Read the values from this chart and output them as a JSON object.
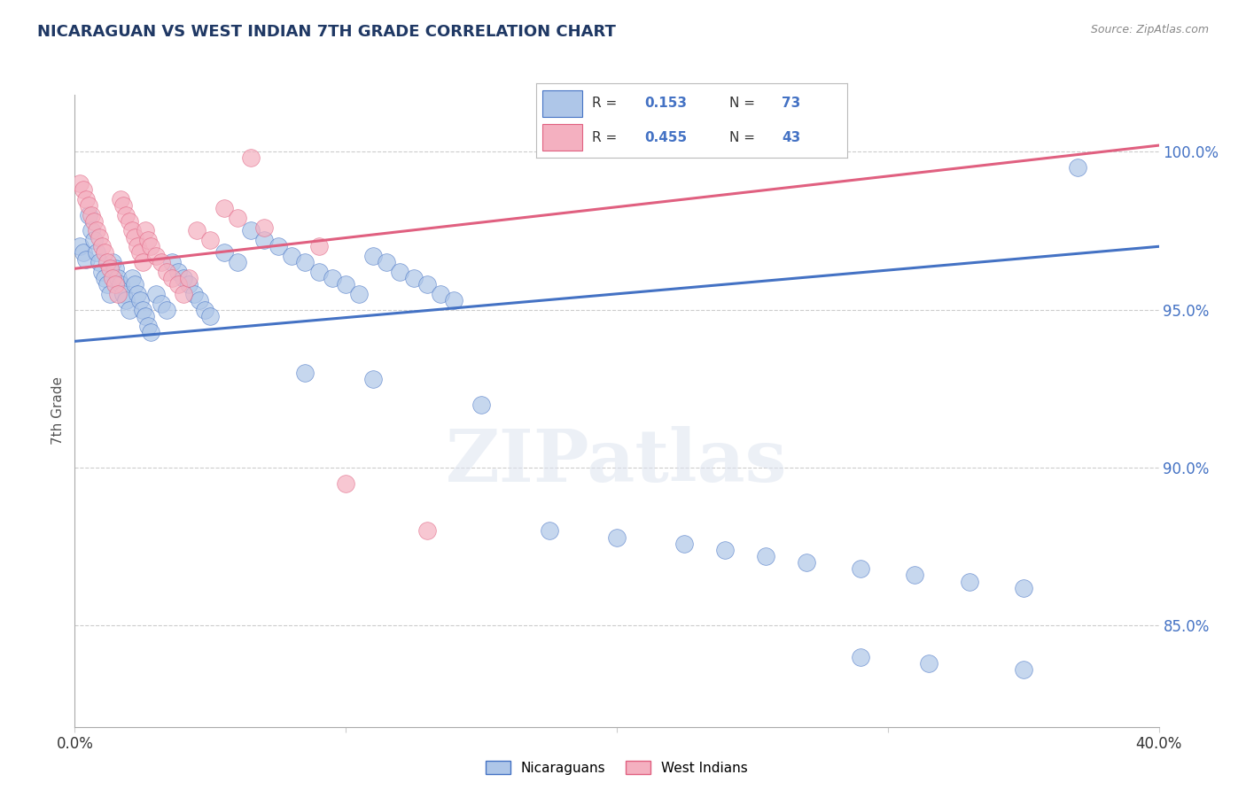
{
  "title": "NICARAGUAN VS WEST INDIAN 7TH GRADE CORRELATION CHART",
  "source": "Source: ZipAtlas.com",
  "ylabel": "7th Grade",
  "yticks_labels": [
    "85.0%",
    "90.0%",
    "95.0%",
    "100.0%"
  ],
  "ytick_vals": [
    0.85,
    0.9,
    0.95,
    1.0
  ],
  "xlim": [
    0.0,
    0.4
  ],
  "ylim": [
    0.818,
    1.018
  ],
  "blue_R": "0.153",
  "blue_N": "73",
  "pink_R": "0.455",
  "pink_N": "43",
  "blue_color": "#aec6e8",
  "pink_color": "#f4b0c0",
  "blue_line_color": "#4472c4",
  "pink_line_color": "#e06080",
  "title_color": "#1f3864",
  "source_color": "#888888",
  "legend_text_color": "#333333",
  "legend_val_color": "#4472c4",
  "blue_scatter": [
    [
      0.002,
      0.97
    ],
    [
      0.003,
      0.968
    ],
    [
      0.004,
      0.966
    ],
    [
      0.005,
      0.98
    ],
    [
      0.006,
      0.975
    ],
    [
      0.007,
      0.972
    ],
    [
      0.008,
      0.968
    ],
    [
      0.009,
      0.965
    ],
    [
      0.01,
      0.962
    ],
    [
      0.011,
      0.96
    ],
    [
      0.012,
      0.958
    ],
    [
      0.013,
      0.955
    ],
    [
      0.014,
      0.965
    ],
    [
      0.015,
      0.963
    ],
    [
      0.016,
      0.96
    ],
    [
      0.017,
      0.958
    ],
    [
      0.018,
      0.955
    ],
    [
      0.019,
      0.953
    ],
    [
      0.02,
      0.95
    ],
    [
      0.021,
      0.96
    ],
    [
      0.022,
      0.958
    ],
    [
      0.023,
      0.955
    ],
    [
      0.024,
      0.953
    ],
    [
      0.025,
      0.95
    ],
    [
      0.026,
      0.948
    ],
    [
      0.027,
      0.945
    ],
    [
      0.028,
      0.943
    ],
    [
      0.03,
      0.955
    ],
    [
      0.032,
      0.952
    ],
    [
      0.034,
      0.95
    ],
    [
      0.036,
      0.965
    ],
    [
      0.038,
      0.962
    ],
    [
      0.04,
      0.96
    ],
    [
      0.042,
      0.958
    ],
    [
      0.044,
      0.955
    ],
    [
      0.046,
      0.953
    ],
    [
      0.048,
      0.95
    ],
    [
      0.05,
      0.948
    ],
    [
      0.055,
      0.968
    ],
    [
      0.06,
      0.965
    ],
    [
      0.065,
      0.975
    ],
    [
      0.07,
      0.972
    ],
    [
      0.075,
      0.97
    ],
    [
      0.08,
      0.967
    ],
    [
      0.085,
      0.965
    ],
    [
      0.09,
      0.962
    ],
    [
      0.095,
      0.96
    ],
    [
      0.1,
      0.958
    ],
    [
      0.105,
      0.955
    ],
    [
      0.11,
      0.967
    ],
    [
      0.115,
      0.965
    ],
    [
      0.12,
      0.962
    ],
    [
      0.125,
      0.96
    ],
    [
      0.13,
      0.958
    ],
    [
      0.135,
      0.955
    ],
    [
      0.14,
      0.953
    ],
    [
      0.085,
      0.93
    ],
    [
      0.11,
      0.928
    ],
    [
      0.15,
      0.92
    ],
    [
      0.175,
      0.88
    ],
    [
      0.2,
      0.878
    ],
    [
      0.225,
      0.876
    ],
    [
      0.24,
      0.874
    ],
    [
      0.255,
      0.872
    ],
    [
      0.27,
      0.87
    ],
    [
      0.29,
      0.868
    ],
    [
      0.31,
      0.866
    ],
    [
      0.33,
      0.864
    ],
    [
      0.35,
      0.862
    ],
    [
      0.29,
      0.84
    ],
    [
      0.315,
      0.838
    ],
    [
      0.35,
      0.836
    ],
    [
      0.37,
      0.995
    ]
  ],
  "pink_scatter": [
    [
      0.002,
      0.99
    ],
    [
      0.003,
      0.988
    ],
    [
      0.004,
      0.985
    ],
    [
      0.005,
      0.983
    ],
    [
      0.006,
      0.98
    ],
    [
      0.007,
      0.978
    ],
    [
      0.008,
      0.975
    ],
    [
      0.009,
      0.973
    ],
    [
      0.01,
      0.97
    ],
    [
      0.011,
      0.968
    ],
    [
      0.012,
      0.965
    ],
    [
      0.013,
      0.963
    ],
    [
      0.014,
      0.96
    ],
    [
      0.015,
      0.958
    ],
    [
      0.016,
      0.955
    ],
    [
      0.017,
      0.985
    ],
    [
      0.018,
      0.983
    ],
    [
      0.019,
      0.98
    ],
    [
      0.02,
      0.978
    ],
    [
      0.021,
      0.975
    ],
    [
      0.022,
      0.973
    ],
    [
      0.023,
      0.97
    ],
    [
      0.024,
      0.968
    ],
    [
      0.025,
      0.965
    ],
    [
      0.026,
      0.975
    ],
    [
      0.027,
      0.972
    ],
    [
      0.028,
      0.97
    ],
    [
      0.03,
      0.967
    ],
    [
      0.032,
      0.965
    ],
    [
      0.034,
      0.962
    ],
    [
      0.036,
      0.96
    ],
    [
      0.038,
      0.958
    ],
    [
      0.04,
      0.955
    ],
    [
      0.042,
      0.96
    ],
    [
      0.045,
      0.975
    ],
    [
      0.05,
      0.972
    ],
    [
      0.055,
      0.982
    ],
    [
      0.06,
      0.979
    ],
    [
      0.065,
      0.998
    ],
    [
      0.07,
      0.976
    ],
    [
      0.09,
      0.97
    ],
    [
      0.1,
      0.895
    ],
    [
      0.13,
      0.88
    ]
  ],
  "blue_line": [
    [
      0.0,
      0.94
    ],
    [
      0.4,
      0.97
    ]
  ],
  "pink_line": [
    [
      0.0,
      0.963
    ],
    [
      0.4,
      1.002
    ]
  ]
}
